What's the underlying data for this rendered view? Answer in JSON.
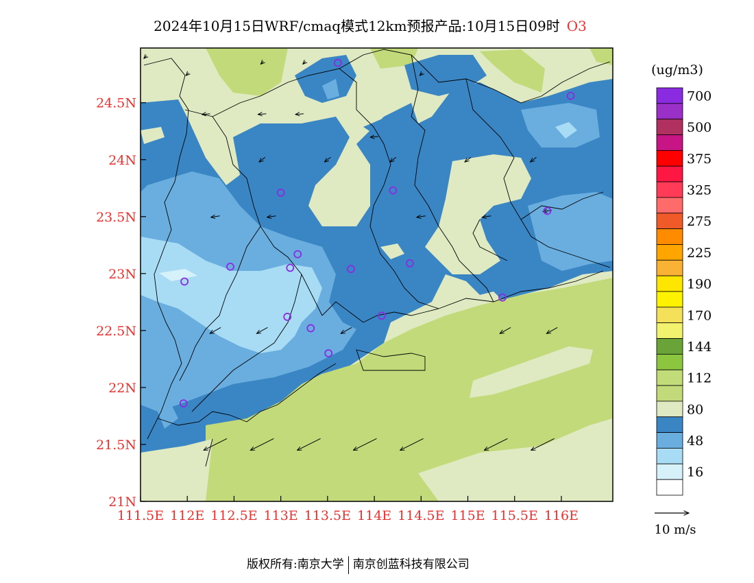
{
  "title": {
    "main": "2024年10月15日WRF/cmaq模式12km预报产品:10月15日09时",
    "species": "O3"
  },
  "colors": {
    "axis_label": "#e8322f",
    "title_species": "#e8322f"
  },
  "axes": {
    "y_ticks": [
      "24.5N",
      "24N",
      "23.5N",
      "23N",
      "22.5N",
      "22N",
      "21.5N",
      "21N"
    ],
    "x_ticks": [
      "111.5E",
      "112E",
      "112.5E",
      "113E",
      "113.5E",
      "114E",
      "114.5E",
      "115E",
      "115.5E",
      "116E"
    ]
  },
  "legend": {
    "unit": "(ug/m3)",
    "levels": [
      {
        "label": "700",
        "color": "#8a2be2"
      },
      {
        "label": "",
        "color": "#9b30c8"
      },
      {
        "label": "500",
        "color": "#b03060"
      },
      {
        "label": "",
        "color": "#c71585"
      },
      {
        "label": "375",
        "color": "#ff0000"
      },
      {
        "label": "",
        "color": "#ff1744"
      },
      {
        "label": "325",
        "color": "#ff3b57"
      },
      {
        "label": "",
        "color": "#ff6a6a"
      },
      {
        "label": "275",
        "color": "#f05a28"
      },
      {
        "label": "",
        "color": "#ff8c00"
      },
      {
        "label": "225",
        "color": "#ffa500"
      },
      {
        "label": "",
        "color": "#f9b233"
      },
      {
        "label": "190",
        "color": "#ffe600"
      },
      {
        "label": "",
        "color": "#fff200"
      },
      {
        "label": "170",
        "color": "#f5e05a"
      },
      {
        "label": "",
        "color": "#f2f26e"
      },
      {
        "label": "144",
        "color": "#6aa338"
      },
      {
        "label": "",
        "color": "#8cc63f"
      },
      {
        "label": "112",
        "color": "#c2dc7a"
      },
      {
        "label": "",
        "color": "#c3da7a"
      },
      {
        "label": "80",
        "color": "#dfeac3"
      },
      {
        "label": "",
        "color": "#3a86c4"
      },
      {
        "label": "48",
        "color": "#6aaee0"
      },
      {
        "label": "",
        "color": "#a8dcf5"
      },
      {
        "label": "16",
        "color": "#d7f1fb"
      },
      {
        "label": "",
        "color": "#ffffff"
      }
    ]
  },
  "vector_legend": {
    "label": "10 m/s"
  },
  "footer": {
    "left": "版权所有:南京大学",
    "right": "南京创蓝科技有限公司"
  },
  "map": {
    "stations": [
      [
        113.61,
        24.85
      ],
      [
        116.1,
        24.56
      ],
      [
        113.0,
        23.71
      ],
      [
        114.2,
        23.73
      ],
      [
        115.85,
        23.55
      ],
      [
        113.18,
        23.17
      ],
      [
        112.46,
        23.06
      ],
      [
        113.1,
        23.05
      ],
      [
        113.75,
        23.04
      ],
      [
        114.38,
        23.09
      ],
      [
        111.97,
        22.93
      ],
      [
        113.07,
        22.62
      ],
      [
        113.32,
        22.52
      ],
      [
        114.08,
        22.63
      ],
      [
        115.37,
        22.79
      ],
      [
        113.51,
        22.3
      ],
      [
        111.96,
        21.86
      ]
    ],
    "wind_fields": {
      "calm": [
        [
          111.55,
          24.9
        ],
        [
          112.0,
          24.75
        ],
        [
          112.8,
          24.85
        ],
        [
          113.25,
          24.85
        ],
        [
          114.5,
          24.75
        ]
      ],
      "slow_west": [
        [
          112.2,
          24.4
        ],
        [
          112.8,
          24.4
        ],
        [
          113.2,
          24.4
        ],
        [
          114.0,
          24.2
        ]
      ],
      "sw_slow": [
        [
          112.8,
          24.0
        ],
        [
          113.5,
          24.0
        ],
        [
          114.2,
          24.0
        ],
        [
          115.0,
          24.0
        ],
        [
          115.7,
          24.0
        ]
      ],
      "west_slow": [
        [
          112.3,
          23.5
        ],
        [
          112.9,
          23.5
        ],
        [
          114.5,
          23.5
        ],
        [
          115.2,
          23.5
        ],
        [
          115.85,
          23.55
        ]
      ],
      "sw_mid": [
        [
          112.3,
          22.5
        ],
        [
          112.8,
          22.5
        ],
        [
          113.7,
          22.5
        ],
        [
          115.4,
          22.5
        ],
        [
          115.9,
          22.5
        ]
      ],
      "sw_fast": [
        [
          112.3,
          21.5
        ],
        [
          112.8,
          21.5
        ],
        [
          113.3,
          21.5
        ],
        [
          113.9,
          21.5
        ],
        [
          114.4,
          21.5
        ],
        [
          115.3,
          21.5
        ],
        [
          115.8,
          21.5
        ]
      ]
    }
  }
}
